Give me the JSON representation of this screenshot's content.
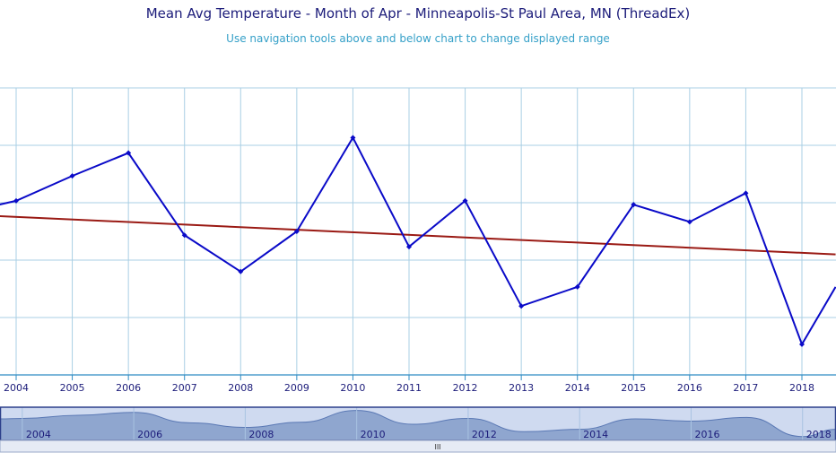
{
  "header": {
    "title": "Mean Avg Temperature - Month of Apr - Minneapolis-St Paul Area, MN (ThreadEx)",
    "subtitle": "Use navigation tools above and below chart to change displayed range"
  },
  "colors": {
    "series": "#0a0ac8",
    "trend": "#9a1a14",
    "grid": "#a9cfe4",
    "axis": "#2f8cc4",
    "nav_fill": "#8fa6cf",
    "nav_bg": "#cfdaf0"
  },
  "chart_data": {
    "type": "line",
    "title": "Mean Avg Temperature - Month of Apr - Minneapolis-St Paul Area, MN (ThreadEx)",
    "subtitle": "Use navigation tools above and below chart to change displayed range",
    "xlabel": "",
    "ylabel": "",
    "xlim": [
      2003.97,
      2018.58
    ],
    "ylim": [
      38,
      53
    ],
    "x": [
      2004,
      2005,
      2006,
      2007,
      2008,
      2009,
      2010,
      2011,
      2012,
      2013,
      2014,
      2015,
      2016,
      2017,
      2018
    ],
    "series": [
      {
        "values": [
          47.1,
          48.4,
          49.6,
          45.3,
          43.4,
          45.5,
          50.4,
          44.7,
          47.1,
          41.6,
          42.6,
          46.9,
          46.0,
          47.5,
          39.6
        ]
      }
    ],
    "lead_in": {
      "x": 2003.7,
      "y": 46.9
    },
    "lead_out": {
      "x": 2018.6,
      "y": 42.6
    },
    "trend": {
      "x": [
        2003.7,
        2018.6
      ],
      "y": [
        46.3,
        44.3
      ]
    },
    "x_ticks": [
      "2004",
      "2005",
      "2006",
      "2007",
      "2008",
      "2009",
      "2010",
      "2011",
      "2012",
      "2013",
      "2014",
      "2015",
      "2016",
      "2017",
      "2018"
    ],
    "grid": true,
    "navigator": {
      "ticks": [
        "2004",
        "2006",
        "2008",
        "2010",
        "2012",
        "2014",
        "2016",
        "2018"
      ],
      "handle_glyph": "III"
    }
  }
}
